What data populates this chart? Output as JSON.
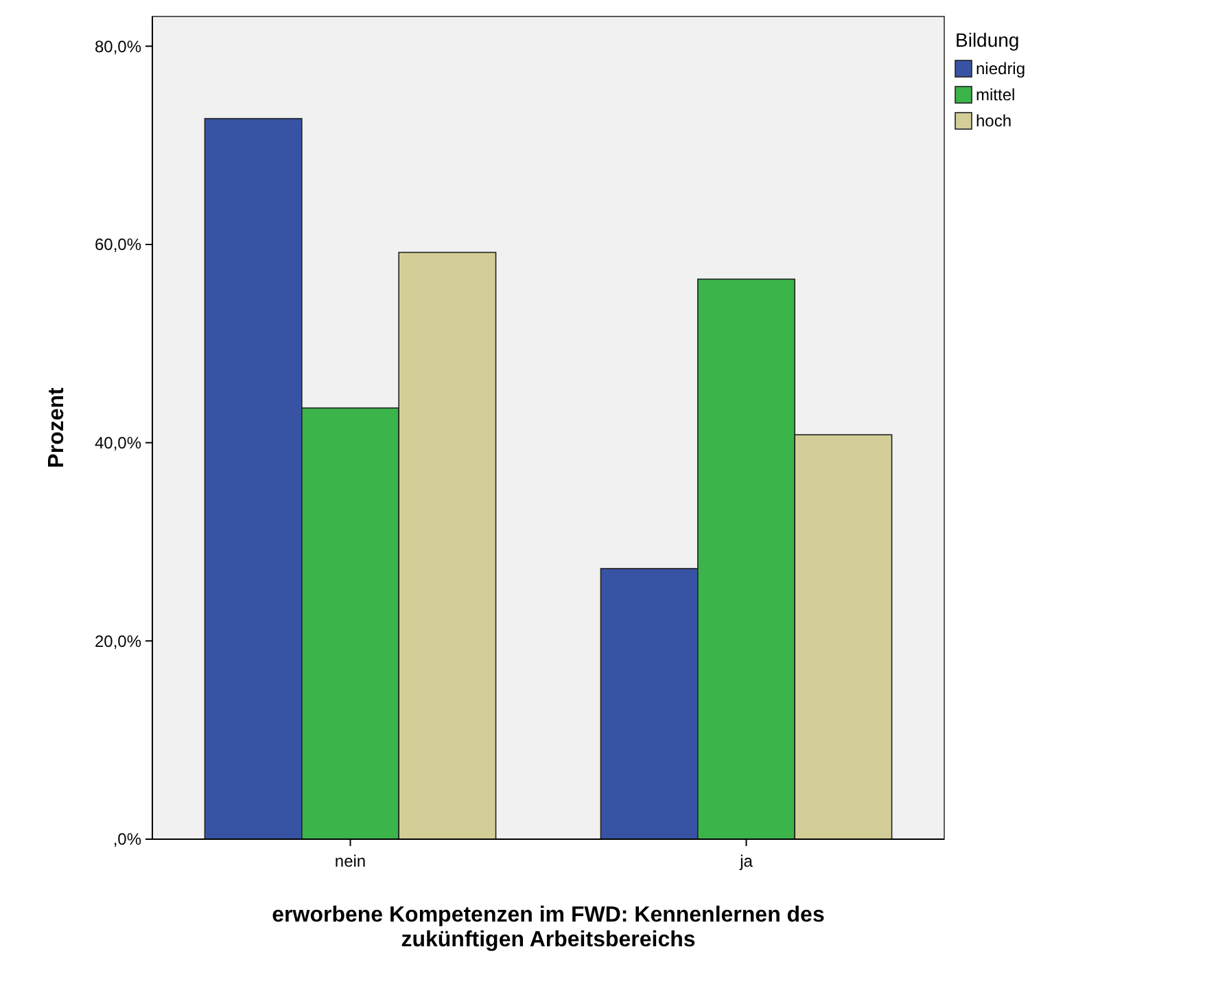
{
  "chart_data": {
    "type": "bar",
    "xlabel": "erworbene Kompetenzen im FWD: Kennenlernen des zukünftigen Arbeitsbereichs",
    "ylabel": "Prozent",
    "legend_title": "Bildung",
    "categories": [
      "nein",
      "ja"
    ],
    "series": [
      {
        "name": "niedrig",
        "color": "#3953a4",
        "values": [
          72.7,
          27.3
        ]
      },
      {
        "name": "mittel",
        "color": "#3bb44a",
        "values": [
          43.5,
          56.5
        ]
      },
      {
        "name": "hoch",
        "color": "#d3ce97",
        "values": [
          59.2,
          40.8
        ]
      }
    ],
    "ylim": [
      0,
      83
    ],
    "yticks": [
      {
        "value": 0,
        "label": ",0%"
      },
      {
        "value": 20,
        "label": "20,0%"
      },
      {
        "value": 40,
        "label": "40,0%"
      },
      {
        "value": 60,
        "label": "60,0%"
      },
      {
        "value": 80,
        "label": "80,0%"
      }
    ],
    "legend": "top right"
  }
}
